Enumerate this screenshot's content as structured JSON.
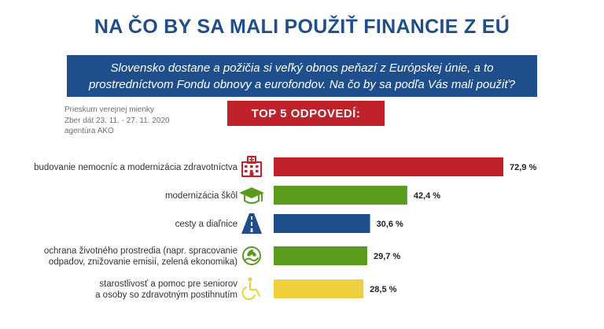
{
  "header": {
    "title": "NA ČO BY SA MALI POUŽIŤ FINANCIE Z EÚ",
    "question": "Slovensko dostane a požičia si veľký obnos peňazí z Európskej únie, a to prostredníctvom Fondu obnovy a eurofondov. Na čo by sa podľa Vás mali použiť?"
  },
  "meta": {
    "line1": "Prieskum verejnej mienky",
    "line2": "Zber dát 23. 11. - 27. 11. 2020",
    "line3": "agentúra AKO"
  },
  "badge": {
    "label": "TOP 5 ODPOVEDÍ:"
  },
  "colors": {
    "navy": "#1f4e8c",
    "red": "#c0222c",
    "green": "#5a9a1e",
    "yellow": "#f0cf3e"
  },
  "chart_data": {
    "type": "bar",
    "orientation": "horizontal",
    "unit": "%",
    "categories": [
      [
        "budovanie nemocníc a modernizácia zdravotníctva"
      ],
      [
        "modernizácia škôl"
      ],
      [
        "cesty a diaľnice"
      ],
      [
        "ochrana životného prostredia (napr. spracovanie",
        "odpadov, znižovanie emisií, zelená ekonomika)"
      ],
      [
        "starostlivosť a pomoc pre seniorov",
        "a osoby so zdravotným postihnutím"
      ]
    ],
    "values": [
      72.9,
      42.4,
      30.6,
      29.7,
      28.5
    ],
    "value_labels": [
      "72,9 %",
      "42,4 %",
      "30,6 %",
      "29,7 %",
      "28,5 %"
    ],
    "bar_colors": [
      "#c0222c",
      "#5a9a1e",
      "#1f4e8c",
      "#5a9a1e",
      "#f0cf3e"
    ],
    "icons": [
      "hospital-icon",
      "graduation-cap-icon",
      "highway-icon",
      "eco-hand-icon",
      "wheelchair-icon"
    ],
    "xlim": [
      0,
      72.9
    ]
  }
}
